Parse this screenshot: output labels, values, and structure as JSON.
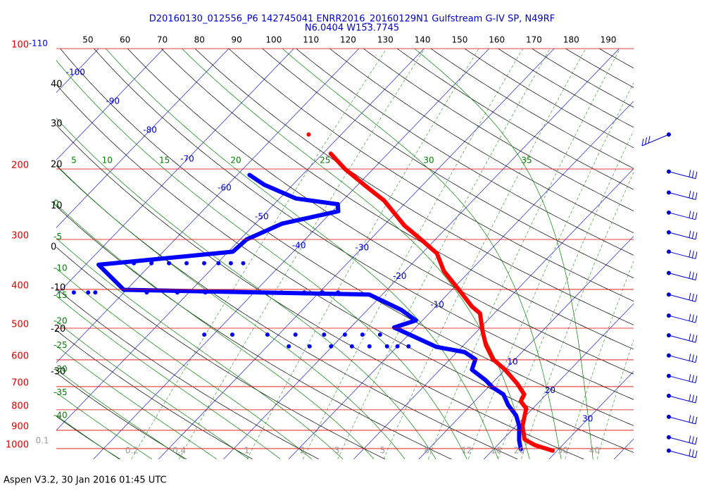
{
  "chart_data": {
    "type": "skewt",
    "title": "D20160130_012556_P6 142745041 ENRR2016_20160129N1 Gulfstream G-IV SP, N49RF",
    "subtitle": "N6.0404 W153.7745",
    "footer": "Aspen V3.2, 30 Jan 2016  01:45 UTC",
    "log_y": true,
    "ylim": [
      1063,
      100
    ],
    "yticks": [
      100,
      200,
      300,
      400,
      500,
      600,
      700,
      800,
      900,
      1000
    ],
    "xlim": [
      -45.7,
      43
    ],
    "top_lim": [
      41.5,
      196.8
    ],
    "top_ticks": [
      50,
      60,
      70,
      80,
      90,
      100,
      110,
      120,
      130,
      140,
      150,
      160,
      170,
      180,
      190
    ],
    "isotherm_lines": [
      -160,
      -150,
      -140,
      -130,
      -120,
      -110,
      -100,
      -90,
      -80,
      -70,
      -60,
      -50,
      -40,
      -30,
      -20,
      -10,
      0,
      10,
      20,
      30,
      40
    ],
    "isotherm_labels": [
      -110,
      -100,
      -90,
      -80,
      -70,
      -60,
      -50,
      -40,
      -30,
      -20,
      -10,
      10,
      20,
      30
    ],
    "dry_adiabat_lines": [
      -40,
      -30,
      -20,
      -10,
      0,
      10,
      20,
      30,
      40,
      50,
      60,
      70,
      80,
      90,
      100,
      110,
      120,
      130,
      140,
      150,
      160,
      170,
      180,
      190,
      200,
      210,
      220
    ],
    "dry_adiabat_labels": [
      40,
      30,
      20,
      10,
      0,
      -10,
      -20,
      -30
    ],
    "moist_adiabats": [
      -40,
      -35,
      -30,
      -25,
      -20,
      -15,
      -10,
      -5,
      0,
      5,
      10,
      15,
      20,
      25,
      30,
      35
    ],
    "mixing_ratios": [
      0.2,
      0.4,
      1,
      2,
      3,
      5,
      8,
      12,
      16,
      20,
      30,
      40
    ],
    "mixing_ratio_left_label": 0.1,
    "grid": true,
    "series": [
      {
        "color": "#ff0000",
        "line": true,
        "pressure": [
          1012,
          980,
          948,
          878,
          794,
          762,
          732,
          689,
          635,
          598,
          551,
          508,
          459,
          441,
          407,
          360,
          325,
          300,
          277,
          240,
          221,
          200,
          183
        ],
        "values": [
          29.3,
          25.7,
          23.3,
          21,
          19,
          17.1,
          16.6,
          14,
          10,
          6.6,
          3.4,
          0.8,
          -2.2,
          -4.5,
          -8.2,
          -14,
          -17.7,
          -22.2,
          -26.8,
          -33.6,
          -38.5,
          -44.3,
          -48.8
        ]
      },
      {
        "color": "#ff0000",
        "line": false,
        "pressure": [
          164
        ],
        "values": [
          -55
        ]
      },
      {
        "color": "#0000ff",
        "line": true,
        "pressure": [
          1004,
          953,
          878,
          827,
          778,
          732,
          703,
          675,
          635,
          598,
          574,
          557,
          498,
          478,
          450,
          412,
          401,
          347,
          322,
          300,
          274,
          255,
          245,
          237,
          219,
          207
        ],
        "values": [
          24.2,
          22.6,
          20.5,
          18.5,
          15.7,
          13.4,
          10.7,
          8.6,
          4.9,
          3.9,
          1.2,
          -3.9,
          -13.3,
          -11,
          -14.8,
          -22,
          -60.4,
          -68,
          -49.3,
          -49,
          -45.9,
          -39.1,
          -40.2,
          -47.5,
          -54.4,
          -58.1
        ]
      },
      {
        "color": "#0000ff",
        "line": false,
        "pressure": [
          344,
          344,
          344,
          344,
          344,
          344,
          344,
          344,
          407,
          407,
          407,
          407,
          407,
          407,
          407,
          407,
          407,
          407,
          407,
          519,
          519,
          519,
          519,
          519,
          519,
          519,
          519,
          555,
          555,
          555,
          555,
          555,
          555,
          555,
          555
        ],
        "values": [
          -62.8,
          -60.1,
          -57.4,
          -54.7,
          -52,
          -49.8,
          -47.9,
          -46,
          -67.7,
          -65.5,
          -64.4,
          -56.5,
          -51.8,
          -47.5,
          -39.2,
          -35.8,
          -32.3,
          -29.5,
          -27.1,
          -41.4,
          -37.1,
          -31.7,
          -27.4,
          -23,
          -19.8,
          -17.1,
          -14.4,
          -26.7,
          -23.5,
          -20.2,
          -17,
          -14.3,
          -11.6,
          -10,
          -8.3
        ]
      }
    ],
    "wind_pressure": [
      164,
      203,
      229,
      257,
      288,
      322,
      364,
      412,
      465,
      521,
      585,
      658,
      738,
      833,
      937,
      1012
    ]
  }
}
